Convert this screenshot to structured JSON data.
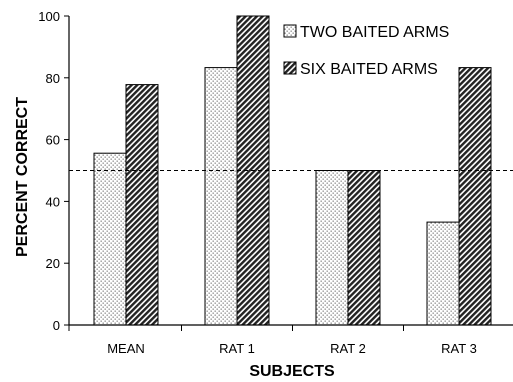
{
  "chart_data": {
    "type": "bar",
    "categories": [
      "MEAN",
      "RAT 1",
      "RAT 2",
      "RAT 3"
    ],
    "series": [
      {
        "name": "TWO BAITED ARMS",
        "values": [
          55.6,
          83.3,
          50,
          33.3
        ],
        "pattern": "dotted"
      },
      {
        "name": "SIX BAITED ARMS",
        "values": [
          77.8,
          100,
          50,
          83.3
        ],
        "pattern": "hatched"
      }
    ],
    "xlabel": "SUBJECTS",
    "ylabel": "PERCENT CORRECT",
    "ylim": [
      0,
      100
    ],
    "yticks": [
      "0",
      "20",
      "40",
      "60",
      "80",
      "100"
    ],
    "reference_line": {
      "value": 50,
      "style": "dashed"
    },
    "legend_position": "top-right",
    "grid": false
  }
}
